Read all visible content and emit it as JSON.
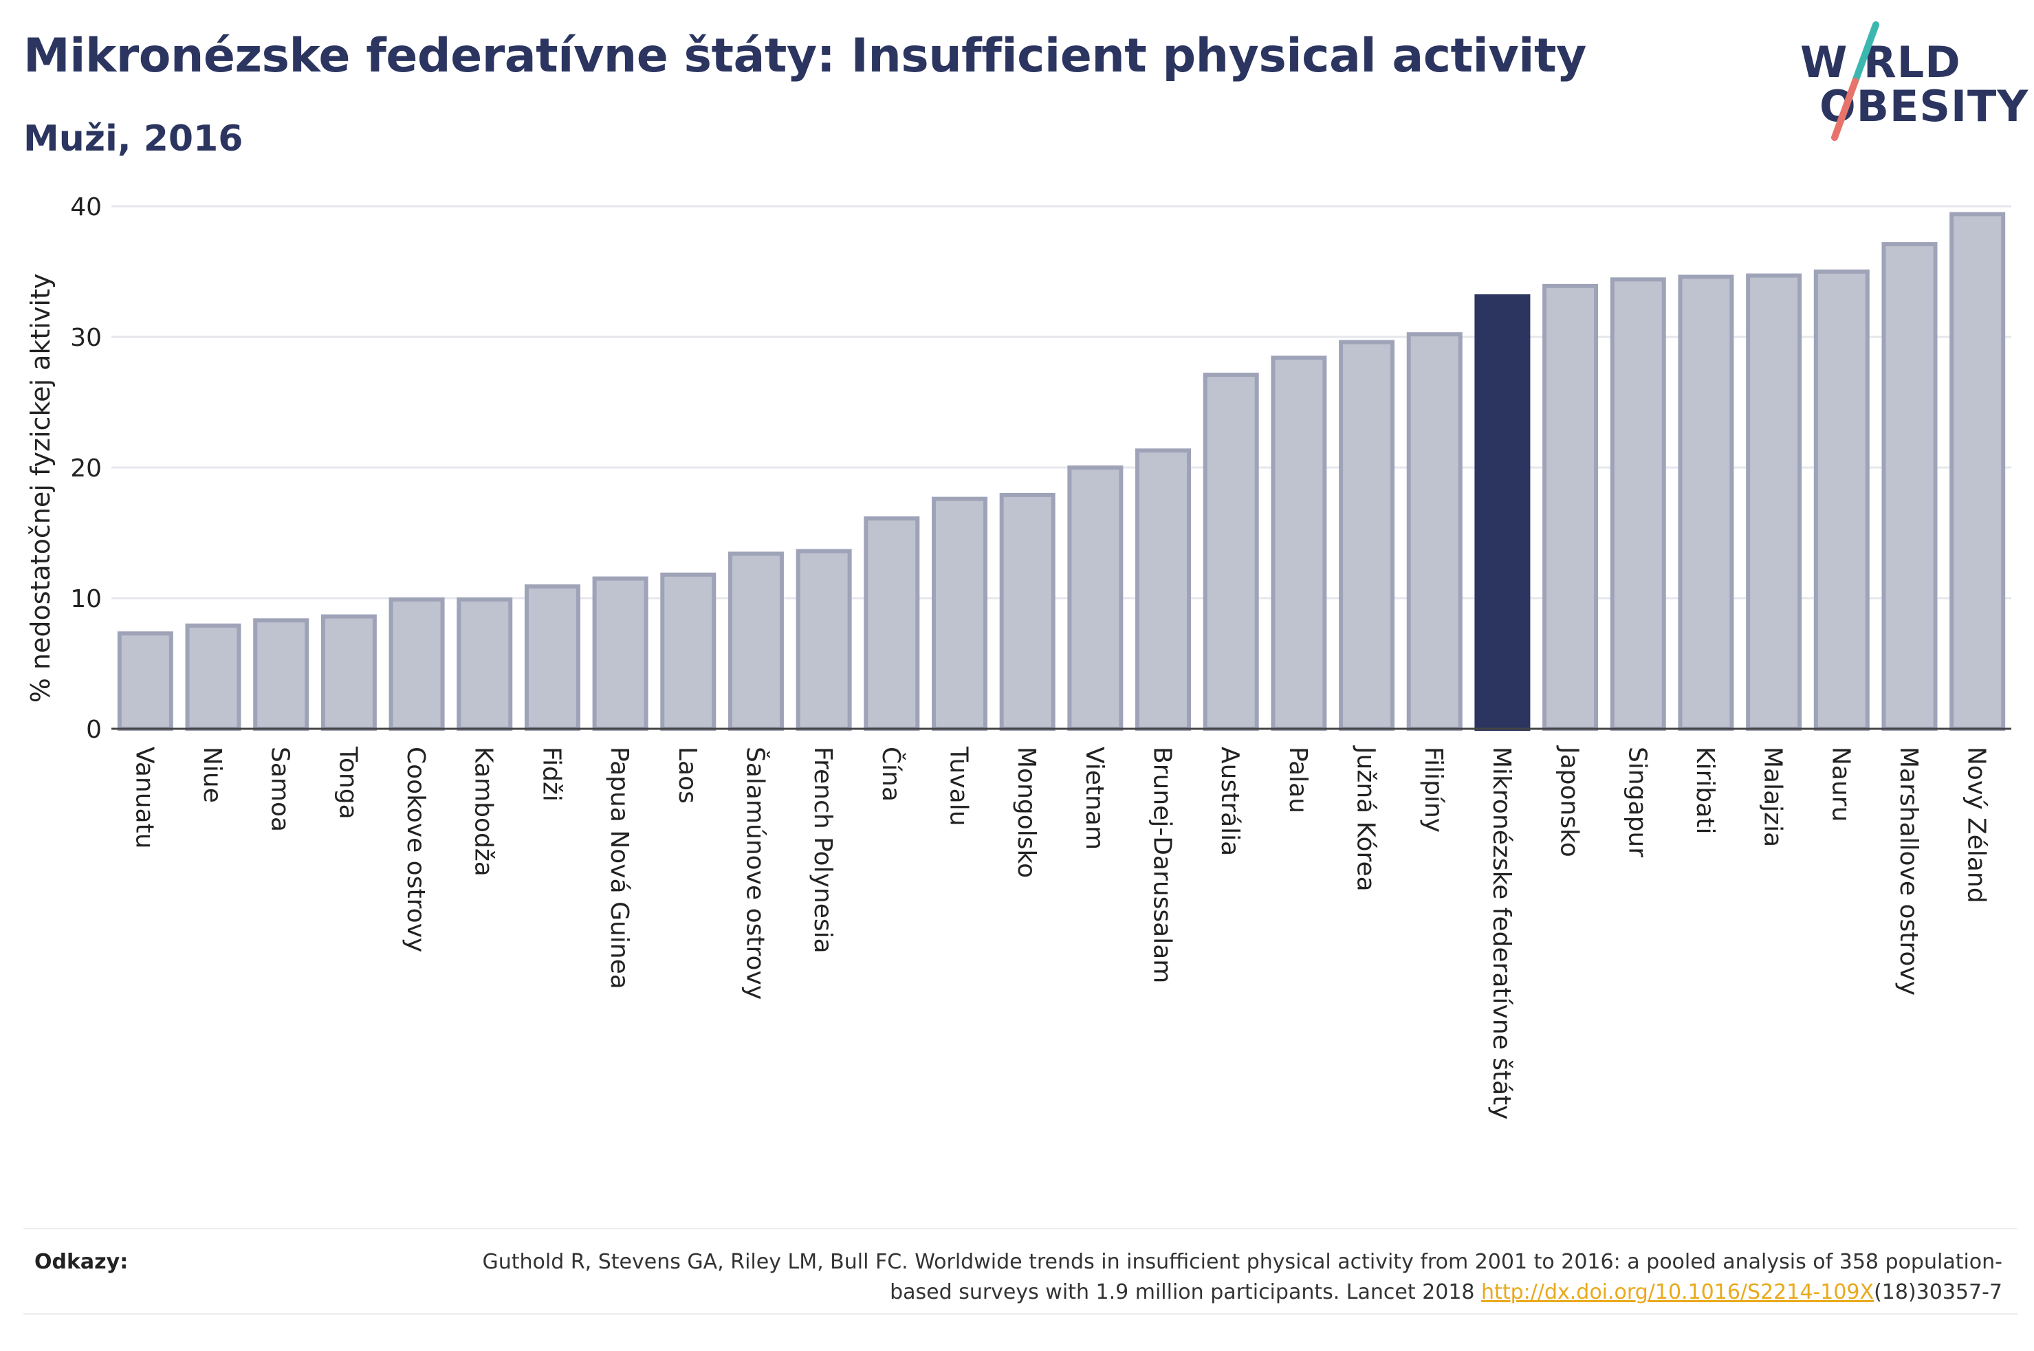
{
  "header": {
    "title": "Mikronézske federatívne štáty: Insufficient physical activity",
    "subtitle": "Muži, 2016"
  },
  "logo": {
    "line1": "W RLD",
    "line2": "OBESITY",
    "accent_colors": [
      "#3cb7b0",
      "#e8736a"
    ]
  },
  "chart_data": {
    "type": "bar",
    "ylabel": "% nedostatočnej fyzickej aktivity",
    "ylim": [
      0,
      40
    ],
    "yticks": [
      0,
      10,
      20,
      30,
      40
    ],
    "grid": true,
    "highlight": "Mikronézske federatívne štáty",
    "colors": {
      "bar": "#bfc2cf",
      "bar_border": "#9ea3b8",
      "highlight": "#2b3560"
    },
    "categories": [
      "Vanuatu",
      "Niue",
      "Samoa",
      "Tonga",
      "Cookove ostrovy",
      "Kambodža",
      "Fidži",
      "Papua Nová Guinea",
      "Laos",
      "Šalamúnove ostrovy",
      "French Polynesia",
      "Čína",
      "Tuvalu",
      "Mongolsko",
      "Vietnam",
      "Brunej-Darussalam",
      "Austrália",
      "Palau",
      "Južná Kórea",
      "Filipíny",
      "Mikronézske federatívne štáty",
      "Japonsko",
      "Singapur",
      "Kiribati",
      "Malajzia",
      "Nauru",
      "Marshallove ostrovy",
      "Nový Zéland"
    ],
    "values": [
      7.3,
      7.9,
      8.3,
      8.6,
      9.9,
      9.9,
      10.9,
      11.5,
      11.8,
      13.4,
      13.6,
      16.1,
      17.6,
      17.9,
      20.0,
      21.3,
      27.1,
      28.4,
      29.6,
      30.2,
      33.1,
      33.9,
      34.4,
      34.6,
      34.7,
      35.0,
      37.1,
      39.4
    ]
  },
  "references": {
    "label": "Odkazy:",
    "text_before": "Guthold R, Stevens GA, Riley LM, Bull FC. Worldwide trends in insufficient physical activity from 2001 to 2016: a pooled analysis of 358 population-based surveys with 1.9 million participants. Lancet 2018 ",
    "link": "http://dx.doi.org/10.1016/S2214-109X",
    "text_after": "(18)30357-7"
  }
}
